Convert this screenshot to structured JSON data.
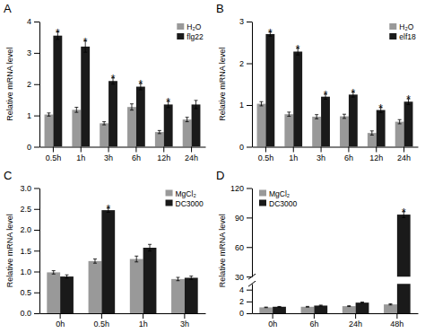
{
  "chart_data": [
    {
      "type": "bar",
      "title": "A",
      "categories": [
        "0.5h",
        "1h",
        "3h",
        "6h",
        "12h",
        "24h"
      ],
      "series": [
        {
          "name": "H₂O",
          "color": "#999999",
          "values": [
            1.03,
            1.18,
            0.75,
            1.27,
            0.47,
            0.87
          ],
          "errors": [
            0.05,
            0.08,
            0.05,
            0.1,
            0.05,
            0.07
          ]
        },
        {
          "name": "flg22",
          "color": "#1a1a1a",
          "values": [
            3.55,
            3.2,
            2.1,
            1.92,
            1.35,
            1.35
          ],
          "errors": [
            0.12,
            0.18,
            0.1,
            0.1,
            0.1,
            0.13
          ]
        }
      ],
      "y_label": "Relative mRNA level",
      "ylim": [
        0,
        4
      ],
      "yticks": [
        0,
        1,
        2,
        3,
        4
      ],
      "annotations": [
        {
          "text": "*",
          "category": "0.5h",
          "series": "flg22"
        },
        {
          "text": "*",
          "category": "1h",
          "series": "flg22"
        },
        {
          "text": "*",
          "category": "3h",
          "series": "flg22"
        },
        {
          "text": "*",
          "category": "6h",
          "series": "flg22"
        },
        {
          "text": "*",
          "category": "12h",
          "series": "flg22"
        }
      ],
      "legend": "upper right",
      "grid": false
    },
    {
      "type": "bar",
      "title": "B",
      "categories": [
        "0.5h",
        "1h",
        "3h",
        "6h",
        "12h",
        "24h"
      ],
      "series": [
        {
          "name": "H₂O",
          "color": "#999999",
          "values": [
            1.03,
            0.78,
            0.72,
            0.73,
            0.33,
            0.6
          ],
          "errors": [
            0.05,
            0.05,
            0.05,
            0.05,
            0.05,
            0.05
          ]
        },
        {
          "name": "elf18",
          "color": "#1a1a1a",
          "values": [
            2.7,
            2.28,
            1.2,
            1.25,
            0.88,
            1.08
          ],
          "errors": [
            0.05,
            0.08,
            0.06,
            0.06,
            0.06,
            0.07
          ]
        }
      ],
      "y_label": "Relative mRNA level",
      "ylim": [
        0,
        3
      ],
      "yticks": [
        0,
        1,
        2,
        3
      ],
      "annotations": [
        {
          "text": "*",
          "category": "0.5h",
          "series": "elf18"
        },
        {
          "text": "*",
          "category": "1h",
          "series": "elf18"
        },
        {
          "text": "*",
          "category": "3h",
          "series": "elf18"
        },
        {
          "text": "*",
          "category": "6h",
          "series": "elf18"
        },
        {
          "text": "*",
          "category": "12h",
          "series": "elf18"
        },
        {
          "text": "*",
          "category": "24h",
          "series": "elf18"
        }
      ],
      "legend": "upper right",
      "grid": false
    },
    {
      "type": "bar",
      "title": "C",
      "categories": [
        "0h",
        "0.5h",
        "1h",
        "3h"
      ],
      "series": [
        {
          "name": "MgCl₂",
          "color": "#999999",
          "values": [
            0.98,
            1.25,
            1.3,
            0.82
          ],
          "errors": [
            0.04,
            0.05,
            0.07,
            0.04
          ]
        },
        {
          "name": "DC3000",
          "color": "#1a1a1a",
          "values": [
            0.88,
            2.47,
            1.57,
            0.85
          ],
          "errors": [
            0.04,
            0.05,
            0.08,
            0.04
          ]
        }
      ],
      "y_label": "Relative mRNA level",
      "ylim": [
        0,
        3
      ],
      "yticks": [
        {
          "value": 0,
          "label": "0.0"
        },
        0.5,
        {
          "value": 1.0,
          "label": "1.0"
        },
        1.5,
        {
          "value": 2.0,
          "label": "2.0"
        },
        2.5,
        {
          "value": 3.0,
          "label": "3.0"
        }
      ],
      "annotations": [
        {
          "text": "*",
          "category": "0.5h",
          "series": "DC3000"
        }
      ],
      "legend": "upper right",
      "grid": false
    },
    {
      "type": "bar",
      "title": "D",
      "categories": [
        "0h",
        "6h",
        "24h",
        "48h"
      ],
      "series": [
        {
          "name": "MgCl₂",
          "color": "#999999",
          "values": [
            1.0,
            1.1,
            1.2,
            1.5
          ],
          "errors": [
            0.05,
            0.06,
            0.07,
            0.1
          ]
        },
        {
          "name": "DC3000",
          "color": "#1a1a1a",
          "values": [
            1.1,
            1.3,
            1.8,
            93.0
          ],
          "errors": [
            0.05,
            0.08,
            0.1,
            3.0
          ]
        }
      ],
      "y_label": "Relative mRNA level",
      "ylim": [
        0,
        120
      ],
      "y_break": [
        5,
        30
      ],
      "yticks": [
        0,
        2,
        4,
        30,
        60,
        90,
        120
      ],
      "annotations": [
        {
          "text": "*",
          "category": "48h",
          "series": "DC3000"
        }
      ],
      "legend": "upper left",
      "grid": false
    }
  ]
}
